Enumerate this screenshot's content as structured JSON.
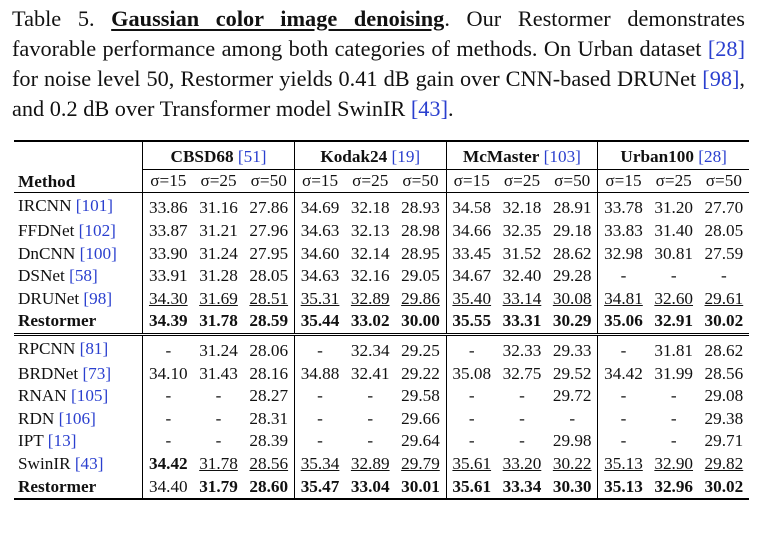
{
  "caption": {
    "label": "Table 5.",
    "title": "Gaussian color image denoising",
    "body": [
      ".  Our Restormer demonstrates favorable performance among both categories of methods.  On Urban dataset ",
      "[28]",
      " for noise level 50, Restormer yields 0.41 dB gain over CNN-based DRUNet ",
      "[98]",
      ", and 0.2 dB over Transformer model SwinIR ",
      "[43]",
      "."
    ]
  },
  "table": {
    "method_header": "Method",
    "datasets": [
      {
        "name": "CBSD68",
        "ref": "[51]"
      },
      {
        "name": "Kodak24",
        "ref": "[19]"
      },
      {
        "name": "McMaster",
        "ref": "[103]"
      },
      {
        "name": "Urban100",
        "ref": "[28]"
      }
    ],
    "noise_levels": [
      "σ=15",
      "σ=25",
      "σ=50"
    ],
    "groups": [
      [
        {
          "method": "IRCNN",
          "ref": "[101]",
          "values": [
            "33.86",
            "31.16",
            "27.86",
            "34.69",
            "32.18",
            "28.93",
            "34.58",
            "32.18",
            "28.91",
            "33.78",
            "31.20",
            "27.70"
          ]
        },
        {
          "method": "FFDNet",
          "ref": "[102]",
          "values": [
            "33.87",
            "31.21",
            "27.96",
            "34.63",
            "32.13",
            "28.98",
            "34.66",
            "32.35",
            "29.18",
            "33.83",
            "31.40",
            "28.05"
          ]
        },
        {
          "method": "DnCNN",
          "ref": "[100]",
          "values": [
            "33.90",
            "31.24",
            "27.95",
            "34.60",
            "32.14",
            "28.95",
            "33.45",
            "31.52",
            "28.62",
            "32.98",
            "30.81",
            "27.59"
          ]
        },
        {
          "method": "DSNet",
          "ref": "[58]",
          "values": [
            "33.91",
            "31.28",
            "28.05",
            "34.63",
            "32.16",
            "29.05",
            "34.67",
            "32.40",
            "29.28",
            "-",
            "-",
            "-"
          ]
        },
        {
          "method": "DRUNet",
          "ref": "[98]",
          "values": [
            "34.30",
            "31.69",
            "28.51",
            "35.31",
            "32.89",
            "29.86",
            "35.40",
            "33.14",
            "30.08",
            "34.81",
            "32.60",
            "29.61"
          ],
          "underline": [
            0,
            1,
            2,
            3,
            4,
            5,
            6,
            7,
            8,
            9,
            10,
            11
          ]
        },
        {
          "method": "Restormer",
          "bold_name": true,
          "values": [
            "34.39",
            "31.78",
            "28.59",
            "35.44",
            "33.02",
            "30.00",
            "35.55",
            "33.31",
            "30.29",
            "35.06",
            "32.91",
            "30.02"
          ],
          "bold": [
            0,
            1,
            2,
            3,
            4,
            5,
            6,
            7,
            8,
            9,
            10,
            11
          ]
        }
      ],
      [
        {
          "method": "RPCNN",
          "ref": "[81]",
          "values": [
            "-",
            "31.24",
            "28.06",
            "-",
            "32.34",
            "29.25",
            "-",
            "32.33",
            "29.33",
            "-",
            "31.81",
            "28.62"
          ]
        },
        {
          "method": "BRDNet",
          "ref": "[73]",
          "values": [
            "34.10",
            "31.43",
            "28.16",
            "34.88",
            "32.41",
            "29.22",
            "35.08",
            "32.75",
            "29.52",
            "34.42",
            "31.99",
            "28.56"
          ]
        },
        {
          "method": "RNAN",
          "ref": "[105]",
          "values": [
            "-",
            "-",
            "28.27",
            "-",
            "-",
            "29.58",
            "-",
            "-",
            "29.72",
            "-",
            "-",
            "29.08"
          ]
        },
        {
          "method": "RDN",
          "ref": "[106]",
          "values": [
            "-",
            "-",
            "28.31",
            "-",
            "-",
            "29.66",
            "-",
            "-",
            "-",
            "-",
            "-",
            "29.38"
          ]
        },
        {
          "method": "IPT",
          "ref": "[13]",
          "values": [
            "-",
            "-",
            "28.39",
            "-",
            "-",
            "29.64",
            "-",
            "-",
            "29.98",
            "-",
            "-",
            "29.71"
          ]
        },
        {
          "method": "SwinIR",
          "ref": "[43]",
          "values": [
            "34.42",
            "31.78",
            "28.56",
            "35.34",
            "32.89",
            "29.79",
            "35.61",
            "33.20",
            "30.22",
            "35.13",
            "32.90",
            "29.82"
          ],
          "bold": [
            0
          ],
          "underline": [
            1,
            2,
            3,
            4,
            5,
            6,
            7,
            8,
            9,
            10,
            11
          ]
        },
        {
          "method": "Restormer",
          "bold_name": true,
          "values": [
            "34.40",
            "31.79",
            "28.60",
            "35.47",
            "33.04",
            "30.01",
            "35.61",
            "33.34",
            "30.30",
            "35.13",
            "32.96",
            "30.02"
          ],
          "bold": [
            1,
            2,
            3,
            4,
            5,
            6,
            7,
            8,
            9,
            10,
            11
          ]
        }
      ]
    ]
  }
}
